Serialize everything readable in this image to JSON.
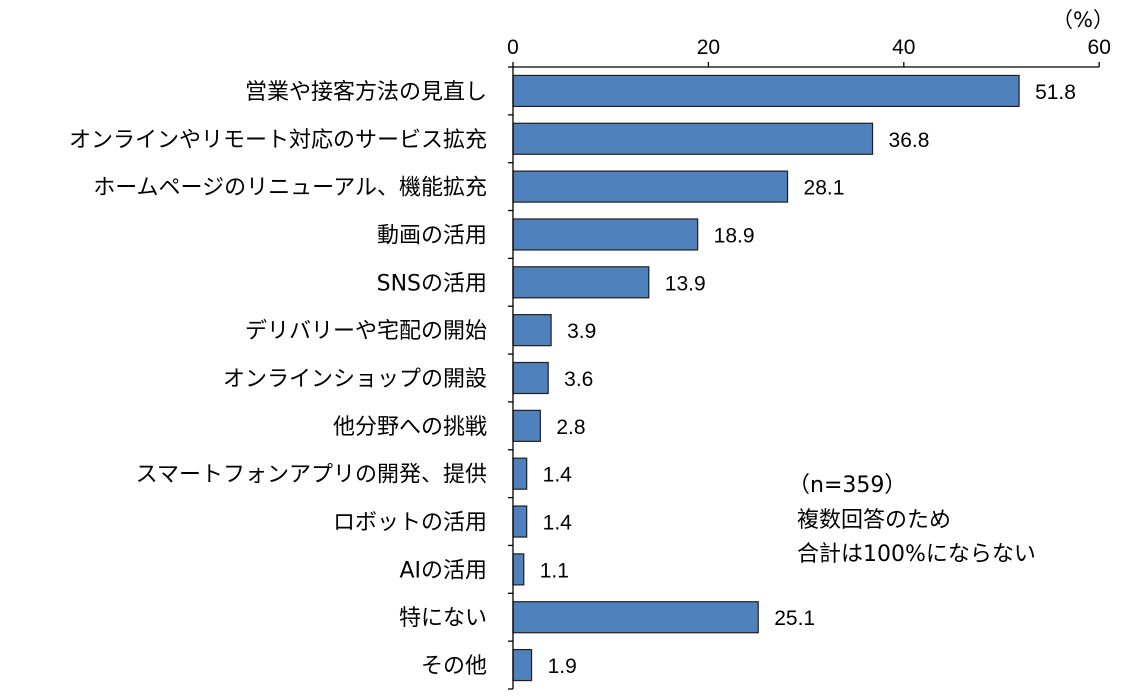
{
  "chart_data": {
    "type": "bar",
    "orientation": "horizontal",
    "unit_label": "（%）",
    "xlim": [
      0,
      60
    ],
    "ticks": [
      0,
      20,
      40,
      60
    ],
    "categories": [
      "営業や接客方法の見直し",
      "オンラインやリモート対応のサービス拡充",
      "ホームページのリニューアル、機能拡充",
      "動画の活用",
      "SNSの活用",
      "デリバリーや宅配の開始",
      "オンラインショップの開設",
      "他分野への挑戦",
      "スマートフォンアプリの開発、提供",
      "ロボットの活用",
      "AIの活用",
      "特にない",
      "その他"
    ],
    "values": [
      51.8,
      36.8,
      28.1,
      18.9,
      13.9,
      3.9,
      3.6,
      2.8,
      1.4,
      1.4,
      1.1,
      25.1,
      1.9
    ],
    "value_labels": [
      "51.8",
      "36.8",
      "28.1",
      "18.9",
      "13.9",
      "3.9",
      "3.6",
      "2.8",
      "1.4",
      "1.4",
      "1.1",
      "25.1",
      "1.9"
    ],
    "bar_color": "#4f81bd",
    "notes": [
      "（n=359）",
      "複数回答のため",
      "合計は100%にならない"
    ],
    "grid": false
  }
}
